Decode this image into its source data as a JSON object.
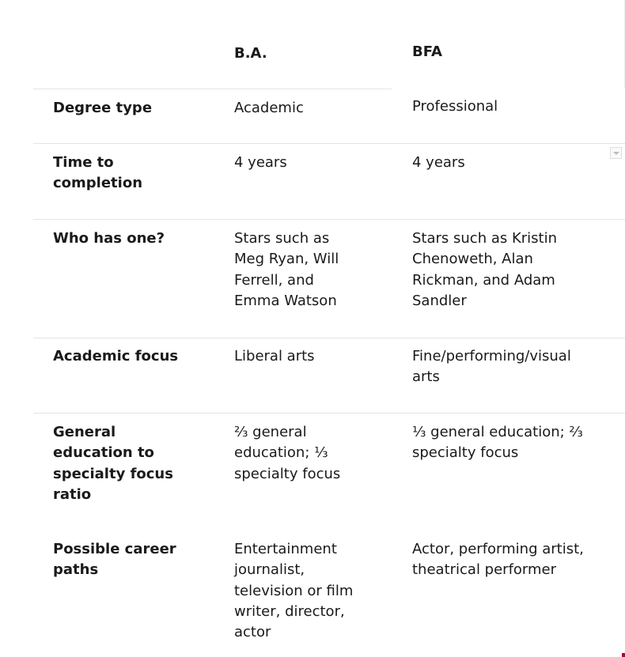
{
  "table": {
    "headers": {
      "col1": "",
      "col2": "B.A.",
      "col3": "BFA"
    },
    "rows": [
      {
        "label": "Degree type",
        "ba": "Academic",
        "bfa": "Professional"
      },
      {
        "label": "Time to\ncompletion",
        "ba": "4 years",
        "bfa": "4 years"
      },
      {
        "label": "Who has one?",
        "ba": "Stars such as\nMeg Ryan, Will\nFerrell, and\nEmma Watson",
        "bfa": "Stars such as Kristin\nChenoweth, Alan\nRickman, and Adam\nSandler"
      },
      {
        "label": "Academic focus",
        "ba": "Liberal arts",
        "bfa": "Fine/performing/visual\narts"
      },
      {
        "label": "General\neducation to\nspecialty focus\nratio",
        "ba": "⅔ general\neducation; ⅓\nspecialty focus",
        "bfa": "⅓ general education; ⅔\nspecialty focus"
      },
      {
        "label": "Possible career\npaths",
        "ba": "Entertainment\njournalist,\ntelevision or film\nwriter, director,\nactor",
        "bfa": "Actor, performing artist,\ntheatrical performer"
      }
    ]
  },
  "icons": {
    "dropdown": "chevron-down-icon"
  }
}
